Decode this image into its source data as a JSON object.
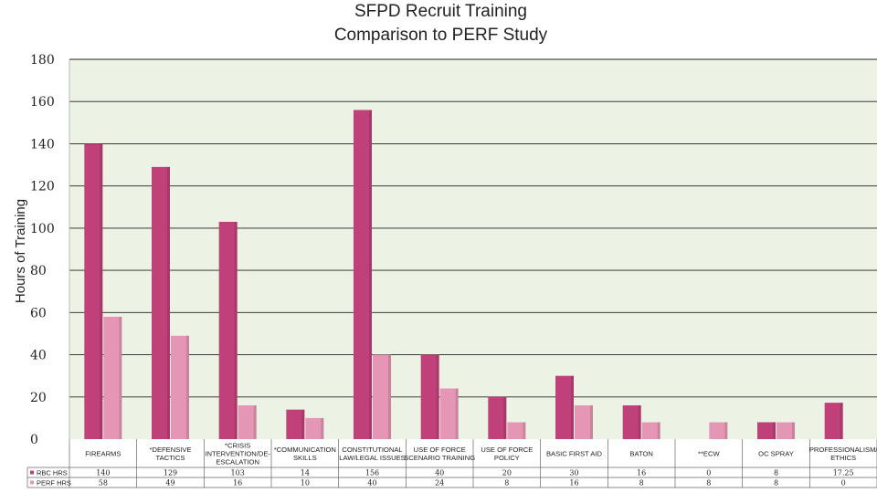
{
  "chart_data": {
    "type": "bar",
    "title_lines": [
      "SFPD Recruit Training",
      "Comparison to PERF Study"
    ],
    "ylabel": "Hours of Training",
    "ylim": [
      0,
      180
    ],
    "yticks": [
      "0",
      "20",
      "40",
      "60",
      "80",
      "100",
      "120",
      "140",
      "160",
      "180"
    ],
    "grid": true,
    "legend": "data-table-below",
    "categories": [
      [
        "FIREARMS"
      ],
      [
        "*DEFENSIVE",
        "TACTICS"
      ],
      [
        "*CRISIS",
        "INTERVENTION/DE-",
        "ESCALATION"
      ],
      [
        "*COMMUNICATION",
        "SKILLS"
      ],
      [
        "CONSTITUTIONAL",
        "LAW/LEGAL ISSUES"
      ],
      [
        "USE OF FORCE",
        "SCENARIO TRAINING"
      ],
      [
        "USE OF FORCE",
        "POLICY"
      ],
      [
        "BASIC FIRST AID"
      ],
      [
        "BATON"
      ],
      [
        "**ECW"
      ],
      [
        "OC SPRAY"
      ],
      [
        "PROFESSIONALISM/",
        "ETHICS"
      ]
    ],
    "series": [
      {
        "name": "RBC HRS",
        "color": "#c0407a",
        "values": [
          140,
          129,
          103,
          14,
          156,
          40,
          20,
          30,
          16,
          0,
          8,
          17.25
        ],
        "labels": [
          "140",
          "129",
          "103",
          "14",
          "156",
          "40",
          "20",
          "30",
          "16",
          "0",
          "8",
          "17.25"
        ]
      },
      {
        "name": "PERF HRS",
        "color": "#e596b4",
        "values": [
          58,
          49,
          16,
          10,
          40,
          24,
          8,
          16,
          8,
          8,
          8,
          0
        ],
        "labels": [
          "58",
          "49",
          "16",
          "10",
          "40",
          "24",
          "8",
          "16",
          "8",
          "8",
          "8",
          "0"
        ]
      }
    ],
    "colors": {
      "plot_background": "#ecf3e4",
      "gridline": "#222222"
    }
  }
}
